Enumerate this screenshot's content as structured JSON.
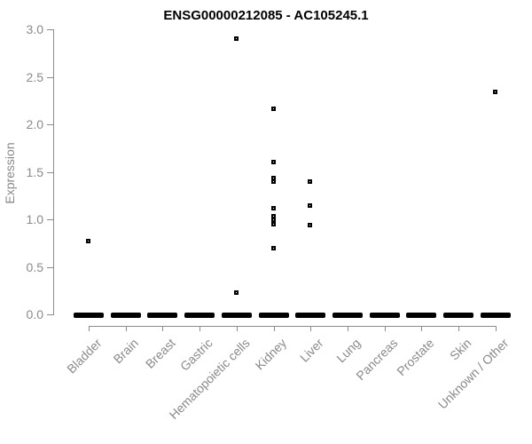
{
  "chart_data": {
    "type": "scatter",
    "title": "ENSG00000212085 - AC105245.1",
    "xlabel": "",
    "ylabel": "Expression",
    "ylim": [
      0.0,
      3.0
    ],
    "ytick_labels": [
      "0.0",
      "0.5",
      "1.0",
      "1.5",
      "2.0",
      "2.5",
      "3.0"
    ],
    "grid": false,
    "legend_position": "none",
    "categories": [
      "Bladder",
      "Brain",
      "Breast",
      "Gastric",
      "Hematopoietic cells",
      "Kidney",
      "Liver",
      "Lung",
      "Pancreas",
      "Prostate",
      "Skin",
      "Unknown / Other"
    ],
    "series": [
      {
        "name": "Bladder",
        "zero_dash": true,
        "values": [
          0.77
        ]
      },
      {
        "name": "Brain",
        "zero_dash": true,
        "values": []
      },
      {
        "name": "Breast",
        "zero_dash": true,
        "values": []
      },
      {
        "name": "Gastric",
        "zero_dash": true,
        "values": []
      },
      {
        "name": "Hematopoietic cells",
        "zero_dash": true,
        "values": [
          2.9,
          0.22
        ]
      },
      {
        "name": "Kidney",
        "zero_dash": true,
        "values": [
          2.16,
          1.6,
          1.43,
          1.39,
          1.11,
          1.03,
          0.99,
          0.94,
          0.69
        ]
      },
      {
        "name": "Liver",
        "zero_dash": true,
        "values": [
          1.39,
          1.14,
          0.93
        ]
      },
      {
        "name": "Lung",
        "zero_dash": true,
        "values": []
      },
      {
        "name": "Pancreas",
        "zero_dash": true,
        "values": []
      },
      {
        "name": "Prostate",
        "zero_dash": true,
        "values": []
      },
      {
        "name": "Skin",
        "zero_dash": true,
        "values": []
      },
      {
        "name": "Unknown / Other",
        "zero_dash": true,
        "values": [
          2.34
        ]
      }
    ],
    "zero_dash_note": "thick black horizontal dash at 0.0 under every category (dense cluster of zero-expression points)",
    "colors": {
      "marker": "#000000",
      "zero_dash": "#000000",
      "axis": "#8c8c8c",
      "tick_label": "#8a8a8a",
      "title": "#000000",
      "background": "#ffffff"
    }
  }
}
